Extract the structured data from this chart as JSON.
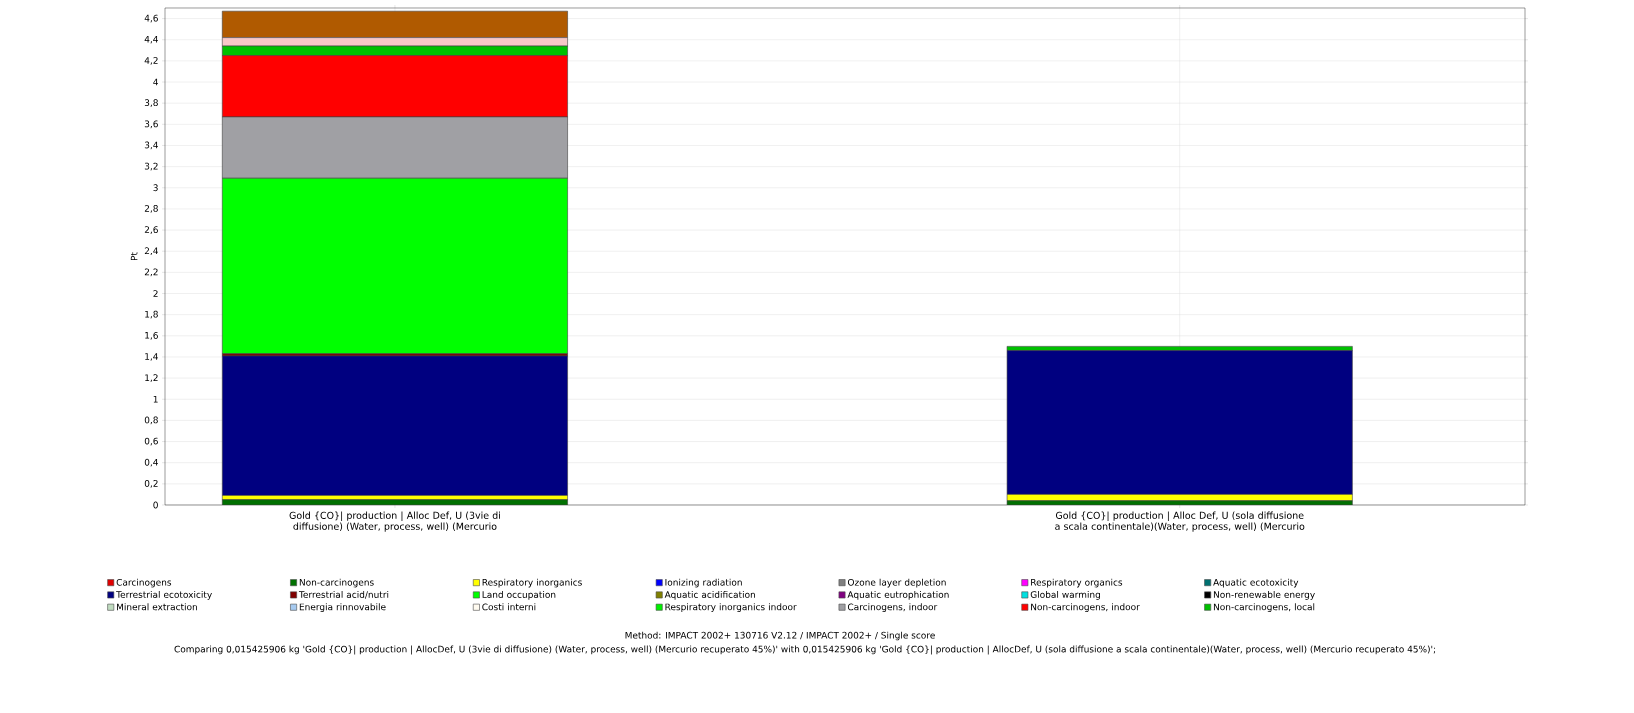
{
  "chart_data": {
    "type": "bar",
    "stacked": true,
    "ylabel": "Pt",
    "categories": [
      "Gold {CO}| production | Alloc Def, U (3vie di diffusione) (Water, process, well) (Mercurio",
      "Gold {CO}| production | Alloc Def, U (sola diffusione a scala continentale)(Water, process, well) (Mercurio"
    ],
    "ylim": [
      0,
      4.7
    ],
    "yticks": [
      0,
      {
        "value": 0.2,
        "label": "0,2"
      },
      {
        "value": 0.4,
        "label": "0,4"
      },
      {
        "value": 0.6,
        "label": "0,6"
      },
      {
        "value": 0.8,
        "label": "0,8"
      },
      1,
      {
        "value": 1.2,
        "label": "1,2"
      },
      {
        "value": 1.4,
        "label": "1,4"
      },
      {
        "value": 1.6,
        "label": "1,6"
      },
      {
        "value": 1.8,
        "label": "1,8"
      },
      2,
      {
        "value": 2.2,
        "label": "2,2"
      },
      {
        "value": 2.4,
        "label": "2,4"
      },
      {
        "value": 2.6,
        "label": "2,6"
      },
      {
        "value": 2.8,
        "label": "2,8"
      },
      3,
      {
        "value": 3.2,
        "label": "3,2"
      },
      {
        "value": 3.4,
        "label": "3,4"
      },
      {
        "value": 3.6,
        "label": "3,6"
      },
      {
        "value": 3.8,
        "label": "3,8"
      },
      4,
      {
        "value": 4.2,
        "label": "4,2"
      },
      {
        "value": 4.4,
        "label": "4,4"
      },
      {
        "value": 4.6,
        "label": "4,6"
      }
    ],
    "grid": true,
    "legend": "bottom",
    "series": [
      {
        "name": "Carcinogens",
        "color": "#e00000",
        "values": [
          0,
          0
        ]
      },
      {
        "name": "Non-carcinogens",
        "color": "#007000",
        "values": [
          0.05,
          0.04
        ]
      },
      {
        "name": "Respiratory inorganics",
        "color": "#ffff00",
        "values": [
          0.04,
          0.06
        ]
      },
      {
        "name": "Ionizing radiation",
        "color": "#0000ff",
        "values": [
          0,
          0
        ]
      },
      {
        "name": "Ozone layer depletion",
        "color": "#808080",
        "values": [
          0,
          0
        ]
      },
      {
        "name": "Respiratory organics",
        "color": "#ff00ff",
        "values": [
          0,
          0
        ]
      },
      {
        "name": "Aquatic ecotoxicity",
        "color": "#007070",
        "values": [
          0,
          0
        ]
      },
      {
        "name": "Terrestrial ecotoxicity",
        "color": "#000080",
        "values": [
          1.32,
          1.36
        ]
      },
      {
        "name": "Terrestrial acid/nutri",
        "color": "#800000",
        "values": [
          0.02,
          0
        ]
      },
      {
        "name": "Land occupation",
        "color": "#00ff00",
        "values": [
          1.66,
          0
        ]
      },
      {
        "name": "Aquatic acidification",
        "color": "#808000",
        "values": [
          0,
          0
        ]
      },
      {
        "name": "Aquatic eutrophication",
        "color": "#800080",
        "values": [
          0,
          0
        ]
      },
      {
        "name": "Global warming",
        "color": "#00e0e0",
        "values": [
          0,
          0
        ]
      },
      {
        "name": "Non-renewable energy",
        "color": "#000000",
        "values": [
          0,
          0
        ]
      },
      {
        "name": "Mineral extraction",
        "color": "#c0dcc0",
        "values": [
          0,
          0
        ]
      },
      {
        "name": "Energia rinnovabile",
        "color": "#a6caf0",
        "values": [
          0,
          0
        ]
      },
      {
        "name": "Costi interni",
        "color": "#fffbf0",
        "values": [
          0,
          0
        ]
      },
      {
        "name": "Respiratory inorganics indoor",
        "color": "#00f000",
        "values": [
          0,
          0
        ]
      },
      {
        "name": "Carcinogens, indoor",
        "color": "#a0a0a4",
        "values": [
          0.58,
          0
        ]
      },
      {
        "name": "Non-carcinogens, indoor",
        "color": "#ff0000",
        "values": [
          0.58,
          0
        ]
      },
      {
        "name": "Non-carcinogens, local",
        "color": "#00c000",
        "values": [
          0.09,
          0.04
        ]
      },
      {
        "color": "#f8c8c8",
        "values": [
          0.08,
          0
        ]
      },
      {
        "color": "#b05a00",
        "values": [
          0.25,
          0
        ]
      }
    ],
    "annotations": [
      "Method: IMPACT 2002+ 130716 V2.12 / IMPACT 2002+ / Single score",
      "Comparing 0,015425906 kg 'Gold {CO}| production | AllocDef, U (3vie di diffusione) (Water, process, well) (Mercurio recuperato 45%)' with 0,015425906 kg 'Gold {CO}| production | AllocDef, U (sola diffusione a scala continentale)(Water, process, well) (Mercurio recuperato 45%)';"
    ]
  }
}
